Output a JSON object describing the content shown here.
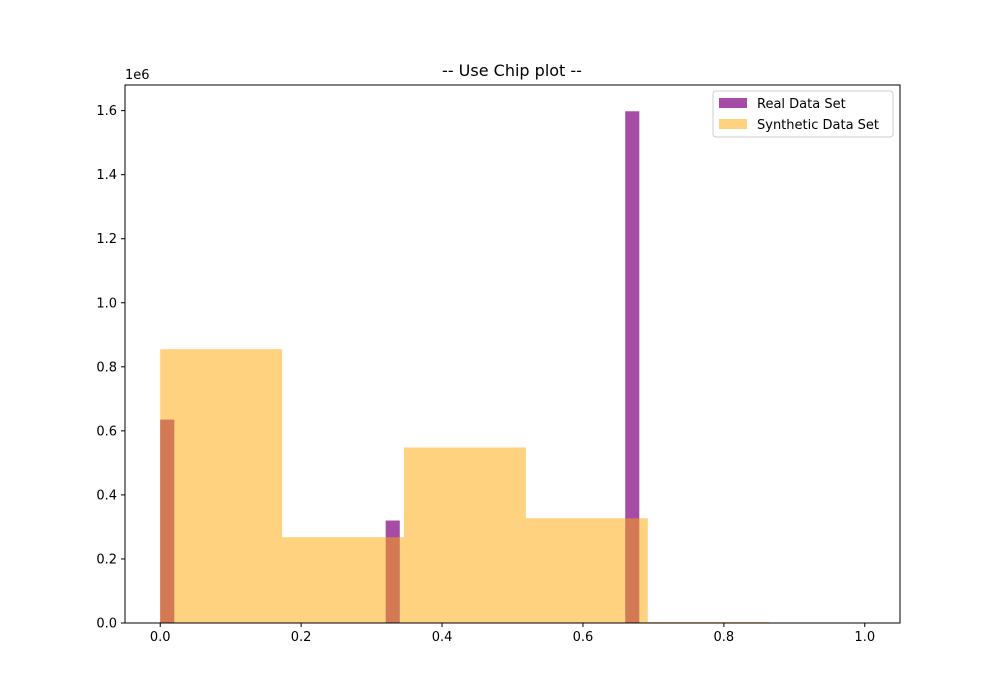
{
  "chart_data": {
    "type": "bar",
    "title": "-- Use Chip plot --",
    "xlabel": "",
    "ylabel": "",
    "y_scale_label": "1e6",
    "xlim": [
      -0.05,
      1.05
    ],
    "ylim": [
      0,
      1680000
    ],
    "x_ticks": [
      0.0,
      0.2,
      0.4,
      0.6,
      0.8,
      1.0
    ],
    "x_tick_labels": [
      "0.0",
      "0.2",
      "0.4",
      "0.6",
      "0.8",
      "1.0"
    ],
    "y_ticks": [
      0,
      200000,
      400000,
      600000,
      800000,
      1000000,
      1200000,
      1400000,
      1600000
    ],
    "y_tick_labels": [
      "0.0",
      "0.2",
      "0.4",
      "0.6",
      "0.8",
      "1.0",
      "1.2",
      "1.4",
      "1.6"
    ],
    "grid": false,
    "legend_position": "top-right",
    "series": [
      {
        "name": "Real Data Set",
        "color": "#800080",
        "opacity": 0.7,
        "bins": [
          {
            "x0": 0.0,
            "x1": 0.02,
            "value": 635000
          },
          {
            "x0": 0.32,
            "x1": 0.34,
            "value": 320000
          },
          {
            "x0": 0.66,
            "x1": 0.68,
            "value": 1598000
          }
        ]
      },
      {
        "name": "Synthetic Data Set",
        "color": "#FFA500",
        "opacity": 0.5,
        "bins": [
          {
            "x0": 0.0,
            "x1": 0.173,
            "value": 855000
          },
          {
            "x0": 0.173,
            "x1": 0.346,
            "value": 268000
          },
          {
            "x0": 0.346,
            "x1": 0.519,
            "value": 548000
          },
          {
            "x0": 0.519,
            "x1": 0.692,
            "value": 327000
          },
          {
            "x0": 0.692,
            "x1": 0.865,
            "value": 3000
          }
        ]
      }
    ]
  }
}
